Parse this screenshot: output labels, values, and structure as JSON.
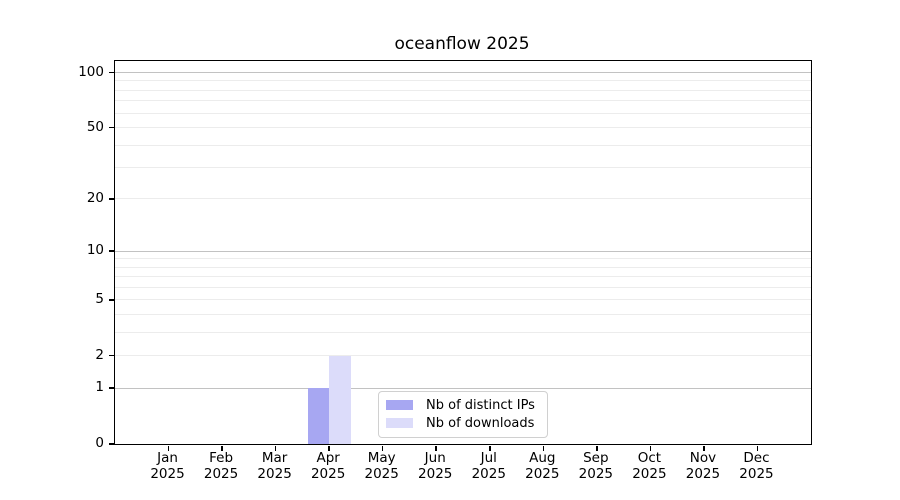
{
  "chart_data": {
    "type": "bar",
    "title": "oceanflow 2025",
    "categories": [
      "Jan",
      "Feb",
      "Mar",
      "Apr",
      "May",
      "Jun",
      "Jul",
      "Aug",
      "Sep",
      "Oct",
      "Nov",
      "Dec"
    ],
    "category_year": "2025",
    "series": [
      {
        "name": "Nb of distinct IPs",
        "color": "#a7a7f2",
        "values": [
          0,
          0,
          0,
          1,
          0,
          0,
          0,
          0,
          0,
          0,
          0,
          0
        ]
      },
      {
        "name": "Nb of downloads",
        "color": "#dcdcfa",
        "values": [
          0,
          0,
          0,
          2,
          0,
          0,
          0,
          0,
          0,
          0,
          0,
          0
        ]
      }
    ],
    "xlabel": "",
    "ylabel": "",
    "y_axis": {
      "scale": "log1p",
      "ymin": 0,
      "ymax": 115.6,
      "labeled_ticks": [
        0,
        1,
        2,
        5,
        10,
        20,
        50,
        100
      ],
      "decade_ticks": [
        1,
        10,
        100
      ],
      "minor_ticks": [
        3,
        4,
        6,
        7,
        8,
        9,
        30,
        40,
        60,
        70,
        80,
        90
      ]
    },
    "grid": true,
    "legend_position": "lower-center"
  },
  "colors": {
    "bar_distinct_ips": "#a7a7f2",
    "bar_downloads": "#dcdcfa",
    "grid_major": "#c2c2c2",
    "grid_minor": "#ececec",
    "spine": "#000000",
    "legend_border": "#d0d0d0",
    "background": "#ffffff"
  }
}
